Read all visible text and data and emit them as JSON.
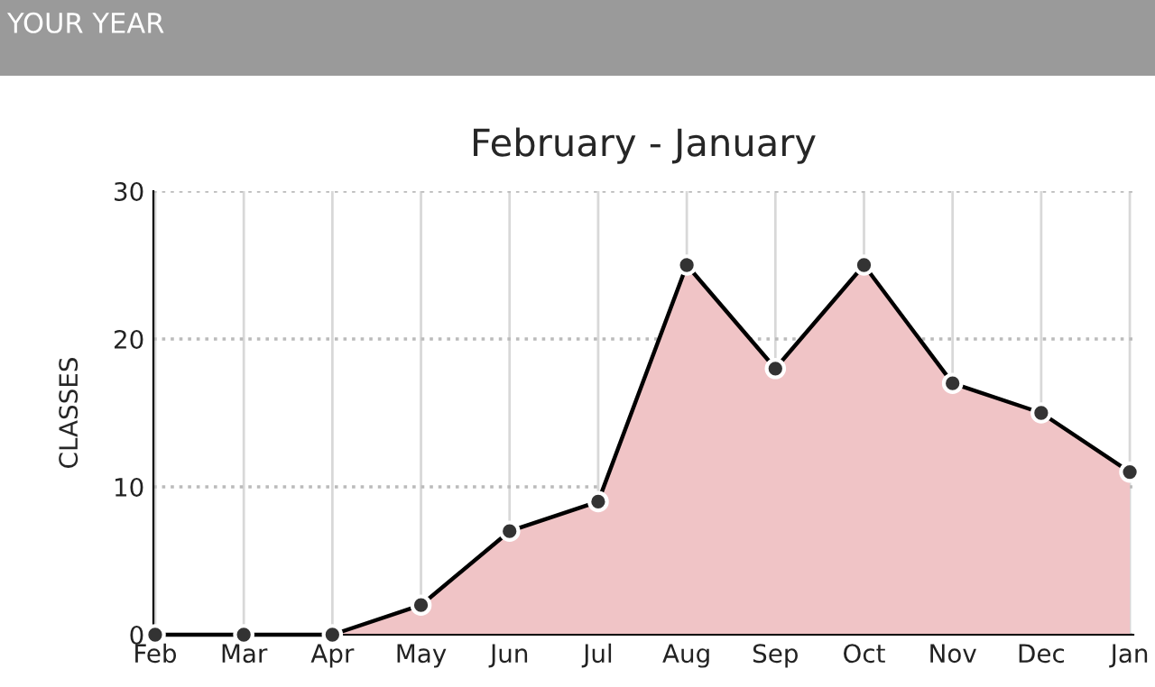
{
  "chart_data": {
    "type": "area",
    "title": "February - January",
    "ylabel": "CLASSES",
    "annotations": [
      "YOUR YEAR"
    ],
    "categories": [
      "Feb",
      "Mar",
      "Apr",
      "May",
      "Jun",
      "Jul",
      "Aug",
      "Sep",
      "Oct",
      "Nov",
      "Dec",
      "Jan"
    ],
    "series": [
      {
        "color": "#f0c4c6",
        "values": [
          0,
          0,
          0,
          2,
          7,
          9,
          25,
          18,
          25,
          17,
          15,
          11
        ]
      }
    ],
    "ylim": [
      0,
      30
    ],
    "yticks": [
      0,
      10,
      20,
      30
    ],
    "grid": true,
    "marker": "circle",
    "line_style": "solid",
    "legend": false
  }
}
